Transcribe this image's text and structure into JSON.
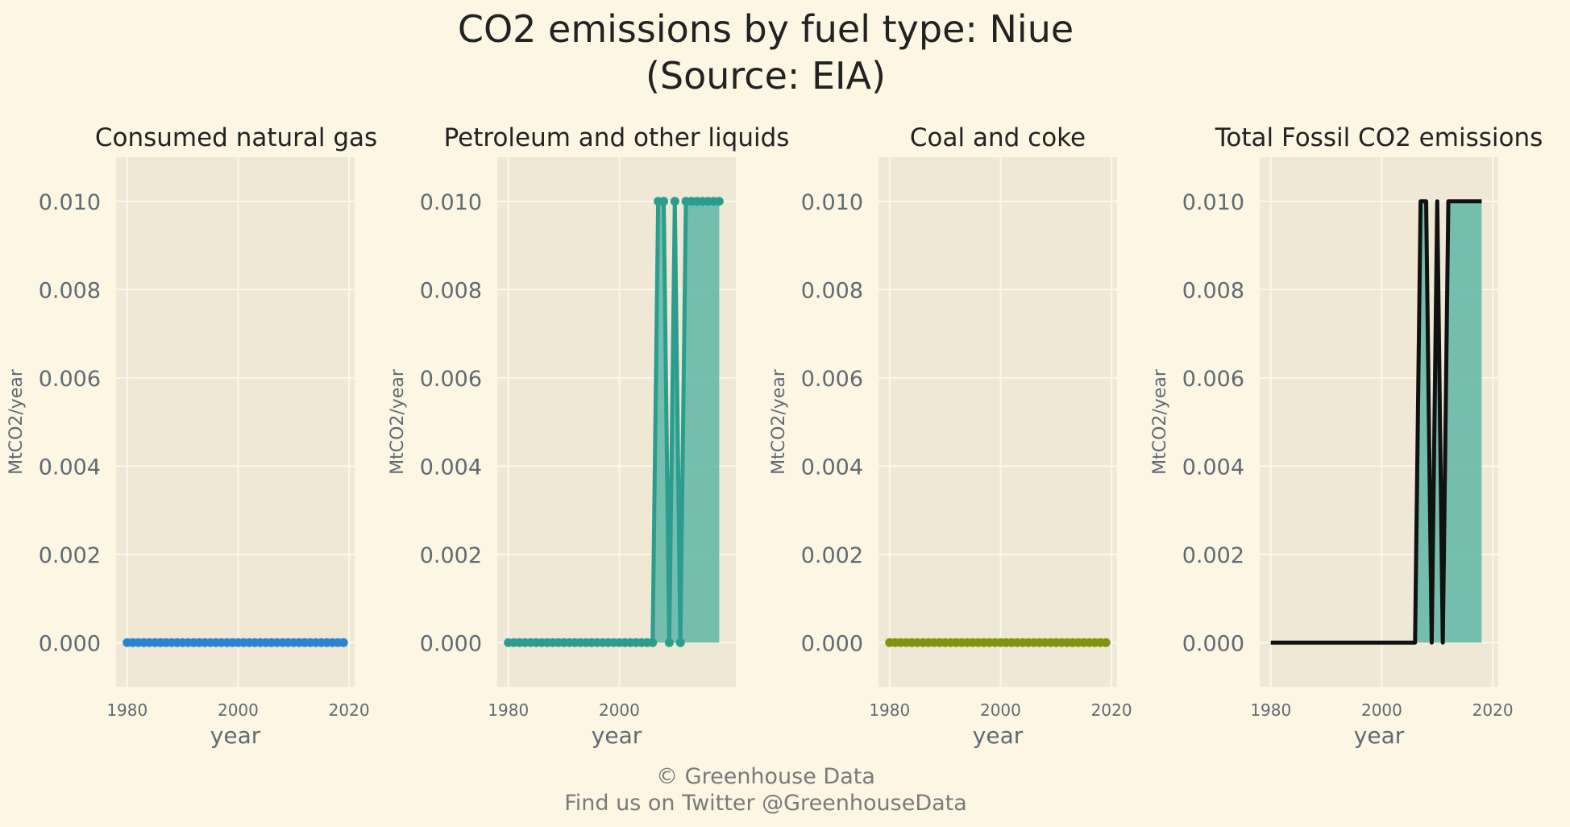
{
  "figure": {
    "title": "CO2 emissions by fuel type: Niue",
    "subtitle": "(Source: EIA)",
    "caption_line1": "© Greenhouse Data",
    "caption_line2": "Find us on Twitter @GreenhouseData"
  },
  "colors": {
    "background": "#fdf6e3",
    "panel": "#eee8d5",
    "grid": "#fbf7ee",
    "gas": "#2b83d1",
    "petroleum": "#2a9d8f",
    "petroleum_fill": "#5fb5a5",
    "coal": "#7f9311",
    "total": "#111111",
    "total_fill": "#5fb5a5"
  },
  "chart_data": [
    {
      "type": "line",
      "title": "Consumed natural gas",
      "xlabel": "year",
      "ylabel": "MtCO2/year",
      "ylim": [
        -0.001,
        0.011
      ],
      "xlim": [
        1978,
        2021
      ],
      "yticks": [
        "0.000",
        "0.002",
        "0.004",
        "0.006",
        "0.008",
        "0.010"
      ],
      "xticks": [
        "1980",
        "2000",
        "2020"
      ],
      "grid": true,
      "markers": true,
      "area": false,
      "color_key": "gas",
      "x": [
        1980,
        1981,
        1982,
        1983,
        1984,
        1985,
        1986,
        1987,
        1988,
        1989,
        1990,
        1991,
        1992,
        1993,
        1994,
        1995,
        1996,
        1997,
        1998,
        1999,
        2000,
        2001,
        2002,
        2003,
        2004,
        2005,
        2006,
        2007,
        2008,
        2009,
        2010,
        2011,
        2012,
        2013,
        2014,
        2015,
        2016,
        2017,
        2018,
        2019
      ],
      "values": [
        0,
        0,
        0,
        0,
        0,
        0,
        0,
        0,
        0,
        0,
        0,
        0,
        0,
        0,
        0,
        0,
        0,
        0,
        0,
        0,
        0,
        0,
        0,
        0,
        0,
        0,
        0,
        0,
        0,
        0,
        0,
        0,
        0,
        0,
        0,
        0,
        0,
        0,
        0,
        0
      ]
    },
    {
      "type": "area",
      "title": "Petroleum and other liquids",
      "xlabel": "year",
      "ylabel": "MtCO2/year",
      "ylim": [
        -0.001,
        0.011
      ],
      "xlim": [
        1978,
        2021
      ],
      "yticks": [
        "0.000",
        "0.002",
        "0.004",
        "0.006",
        "0.008",
        "0.010"
      ],
      "xticks": [
        "1980",
        "2000"
      ],
      "grid": true,
      "markers": true,
      "area": true,
      "color_key": "petroleum",
      "x": [
        1980,
        1981,
        1982,
        1983,
        1984,
        1985,
        1986,
        1987,
        1988,
        1989,
        1990,
        1991,
        1992,
        1993,
        1994,
        1995,
        1996,
        1997,
        1998,
        1999,
        2000,
        2001,
        2002,
        2003,
        2004,
        2005,
        2006,
        2007,
        2008,
        2009,
        2010,
        2011,
        2012,
        2013,
        2014,
        2015,
        2016,
        2017,
        2018
      ],
      "values": [
        0,
        0,
        0,
        0,
        0,
        0,
        0,
        0,
        0,
        0,
        0,
        0,
        0,
        0,
        0,
        0,
        0,
        0,
        0,
        0,
        0,
        0,
        0,
        0,
        0,
        0,
        0,
        0.01,
        0.01,
        0,
        0.01,
        0,
        0.01,
        0.01,
        0.01,
        0.01,
        0.01,
        0.01,
        0.01
      ]
    },
    {
      "type": "line",
      "title": "Coal and coke",
      "xlabel": "year",
      "ylabel": "MtCO2/year",
      "ylim": [
        -0.001,
        0.011
      ],
      "xlim": [
        1978,
        2021
      ],
      "yticks": [
        "0.000",
        "0.002",
        "0.004",
        "0.006",
        "0.008",
        "0.010"
      ],
      "xticks": [
        "1980",
        "2000",
        "2020"
      ],
      "grid": true,
      "markers": true,
      "area": false,
      "color_key": "coal",
      "x": [
        1980,
        1981,
        1982,
        1983,
        1984,
        1985,
        1986,
        1987,
        1988,
        1989,
        1990,
        1991,
        1992,
        1993,
        1994,
        1995,
        1996,
        1997,
        1998,
        1999,
        2000,
        2001,
        2002,
        2003,
        2004,
        2005,
        2006,
        2007,
        2008,
        2009,
        2010,
        2011,
        2012,
        2013,
        2014,
        2015,
        2016,
        2017,
        2018,
        2019
      ],
      "values": [
        0,
        0,
        0,
        0,
        0,
        0,
        0,
        0,
        0,
        0,
        0,
        0,
        0,
        0,
        0,
        0,
        0,
        0,
        0,
        0,
        0,
        0,
        0,
        0,
        0,
        0,
        0,
        0,
        0,
        0,
        0,
        0,
        0,
        0,
        0,
        0,
        0,
        0,
        0,
        0
      ]
    },
    {
      "type": "area",
      "title": "Total Fossil CO2 emissions",
      "xlabel": "year",
      "ylabel": "MtCO2/year",
      "ylim": [
        -0.001,
        0.011
      ],
      "xlim": [
        1978,
        2021
      ],
      "yticks": [
        "0.000",
        "0.002",
        "0.004",
        "0.006",
        "0.008",
        "0.010"
      ],
      "xticks": [
        "1980",
        "2000",
        "2020"
      ],
      "grid": true,
      "markers": false,
      "area": true,
      "color_key": "total",
      "fill_key": "total_fill",
      "x": [
        1980,
        1981,
        1982,
        1983,
        1984,
        1985,
        1986,
        1987,
        1988,
        1989,
        1990,
        1991,
        1992,
        1993,
        1994,
        1995,
        1996,
        1997,
        1998,
        1999,
        2000,
        2001,
        2002,
        2003,
        2004,
        2005,
        2006,
        2007,
        2008,
        2009,
        2010,
        2011,
        2012,
        2013,
        2014,
        2015,
        2016,
        2017,
        2018
      ],
      "values": [
        0,
        0,
        0,
        0,
        0,
        0,
        0,
        0,
        0,
        0,
        0,
        0,
        0,
        0,
        0,
        0,
        0,
        0,
        0,
        0,
        0,
        0,
        0,
        0,
        0,
        0,
        0,
        0.01,
        0.01,
        0,
        0.01,
        0,
        0.01,
        0.01,
        0.01,
        0.01,
        0.01,
        0.01,
        0.01
      ]
    }
  ]
}
